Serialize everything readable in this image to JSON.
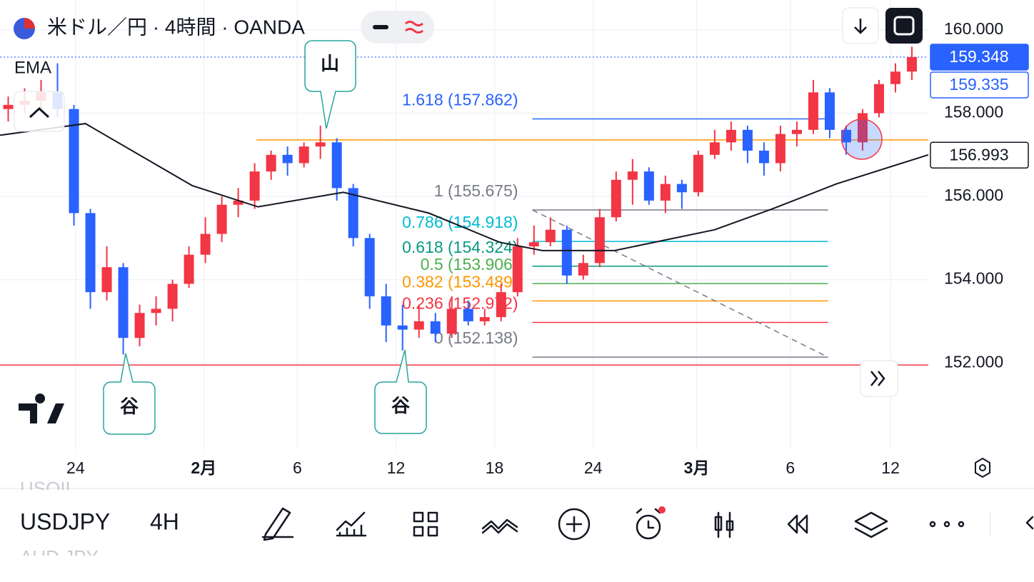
{
  "header": {
    "title": "米ドル／円 · 4時間 · OANDA",
    "indicator": "EMA"
  },
  "chart_data": {
    "type": "candlestick",
    "x": [
      0.5,
      1.5,
      2.5,
      3.5,
      4.5,
      5.5,
      6.5,
      7.5,
      8.5,
      9.5,
      10.5,
      11.5,
      12.5,
      13.5,
      14.5,
      15.5,
      16.5,
      17.5,
      18.5,
      19.5,
      20.5,
      21.5,
      22.5,
      23.5,
      24.5,
      25.5,
      26.5,
      27.5,
      28.5,
      29.5,
      30.5,
      31.5,
      32.5,
      33.5,
      34.5,
      35.5,
      36.5,
      37.5,
      38.5,
      39.5,
      40.5,
      41.5,
      42.5,
      43.5,
      44.5,
      45.5,
      46.5,
      47.5,
      48.5,
      49.5,
      50.5,
      51.5,
      52.5,
      53.5,
      54.5,
      55.5
    ],
    "open": [
      158.1,
      158.2,
      158.3,
      158.5,
      158.1,
      155.6,
      153.7,
      154.3,
      152.6,
      153.2,
      153.3,
      153.9,
      154.6,
      155.1,
      155.8,
      155.9,
      156.6,
      157.0,
      156.8,
      157.2,
      157.3,
      156.2,
      155.0,
      153.6,
      152.9,
      152.8,
      153.0,
      152.7,
      153.3,
      153.0,
      153.1,
      153.7,
      154.8,
      154.9,
      155.2,
      154.1,
      154.4,
      155.5,
      156.4,
      156.6,
      155.9,
      156.3,
      156.1,
      157.0,
      157.3,
      157.6,
      157.1,
      156.8,
      157.5,
      157.6,
      158.5,
      157.6,
      157.3,
      158.0,
      158.7,
      159.0
    ],
    "high": [
      158.4,
      158.6,
      158.8,
      159.2,
      158.2,
      155.7,
      154.8,
      154.4,
      153.4,
      153.6,
      154.0,
      154.8,
      155.5,
      156.0,
      156.2,
      156.8,
      157.1,
      157.2,
      157.3,
      157.7,
      157.4,
      156.3,
      155.1,
      153.9,
      153.4,
      153.4,
      153.2,
      153.6,
      153.5,
      153.3,
      153.9,
      155.0,
      155.3,
      155.5,
      155.3,
      154.6,
      155.7,
      156.6,
      156.9,
      156.7,
      156.5,
      156.4,
      157.1,
      157.6,
      157.8,
      157.7,
      157.3,
      157.7,
      157.8,
      158.8,
      158.6,
      157.7,
      158.1,
      158.8,
      159.2,
      159.6
    ],
    "low": [
      157.8,
      158.0,
      158.1,
      157.9,
      155.3,
      153.3,
      153.5,
      152.2,
      152.4,
      152.9,
      153.0,
      153.8,
      154.4,
      154.9,
      155.5,
      155.7,
      156.4,
      156.5,
      156.7,
      156.9,
      155.9,
      154.8,
      153.3,
      152.5,
      152.3,
      152.6,
      152.5,
      152.6,
      152.9,
      152.9,
      153.0,
      153.6,
      154.6,
      154.8,
      153.9,
      154.0,
      154.3,
      155.4,
      155.8,
      155.8,
      155.6,
      155.7,
      156.0,
      156.9,
      157.1,
      156.8,
      156.5,
      156.6,
      157.2,
      157.5,
      157.4,
      157.0,
      157.1,
      157.9,
      158.5,
      158.8
    ],
    "close": [
      158.2,
      158.3,
      158.5,
      158.1,
      155.6,
      153.7,
      154.3,
      152.6,
      153.2,
      153.3,
      153.9,
      154.6,
      155.1,
      155.8,
      155.9,
      156.6,
      157.0,
      156.8,
      157.2,
      157.3,
      156.2,
      155.0,
      153.6,
      152.9,
      152.8,
      153.0,
      152.7,
      153.3,
      153.0,
      153.1,
      153.7,
      154.8,
      154.9,
      155.2,
      154.1,
      154.4,
      155.5,
      156.4,
      156.6,
      155.9,
      156.3,
      156.1,
      157.0,
      157.3,
      157.6,
      157.1,
      156.8,
      157.5,
      157.6,
      158.5,
      157.6,
      157.3,
      158.0,
      158.7,
      159.0,
      159.35
    ],
    "up_color": "#f23645",
    "down_color": "#2962ff",
    "xlim": [
      0,
      56.5
    ],
    "xticks": [
      {
        "value": 4.6,
        "label": "24"
      },
      {
        "value": 12.4,
        "label": "2月"
      },
      {
        "value": 18.1,
        "label": "6"
      },
      {
        "value": 24.1,
        "label": "12"
      },
      {
        "value": 30.1,
        "label": "18"
      },
      {
        "value": 36.1,
        "label": "24"
      },
      {
        "value": 42.4,
        "label": "3月"
      },
      {
        "value": 48.1,
        "label": "6"
      },
      {
        "value": 54.2,
        "label": "12"
      }
    ],
    "ylim": [
      149.91,
      160.72
    ],
    "yticks": [
      {
        "value": 152,
        "label": "152.000"
      },
      {
        "value": 154,
        "label": "154.000"
      },
      {
        "value": 156,
        "label": "156.000"
      },
      {
        "value": 158,
        "label": "158.000"
      },
      {
        "value": 160,
        "label": "160.000"
      }
    ],
    "grid": true,
    "ema": {
      "color": "#131722",
      "x": [
        0,
        5.2,
        11.7,
        15.7,
        20.9,
        26.1,
        30.4,
        33,
        37.4,
        43.5,
        47,
        50.9,
        56.5
      ],
      "values": [
        157.47,
        157.75,
        156.26,
        155.75,
        156.1,
        155.6,
        154.9,
        154.7,
        154.7,
        155.2,
        155.7,
        156.3,
        157.0
      ]
    },
    "hlines": [
      {
        "value": 157.36,
        "color": "#ff9800",
        "x_start": 15.6
      },
      {
        "value": 151.95,
        "color": "#f23645",
        "x_start": 0
      }
    ],
    "fib": {
      "x_start": 32.4,
      "x_end": 50.4,
      "levels": [
        {
          "price": 157.862,
          "color": "#2962ff",
          "label": "1.618 (157.862)"
        },
        {
          "price": 155.675,
          "color": "#787b86",
          "label": "1 (155.675)"
        },
        {
          "price": 154.918,
          "color": "#00bcd4",
          "label": "0.786 (154.918)"
        },
        {
          "price": 154.324,
          "color": "#089981",
          "label": "0.618 (154.324)"
        },
        {
          "price": 153.906,
          "color": "#4caf50",
          "label": "0.5 (153.906)"
        },
        {
          "price": 153.489,
          "color": "#ff9800",
          "label": "0.382 (153.489)"
        },
        {
          "price": 152.972,
          "color": "#f23645",
          "label": "0.236 (152.972)"
        },
        {
          "price": 152.138,
          "color": "#787b86",
          "label": "0 (152.138)"
        }
      ]
    },
    "price_labels": [
      {
        "value": 159.348,
        "style": "filled",
        "color": "#2962ff"
      },
      {
        "value": 159.335,
        "style": "outline",
        "color": "#2962ff"
      },
      {
        "value": 156.993,
        "style": "outline",
        "color": "#131722"
      }
    ],
    "annotations": [
      {
        "text": "山"
      },
      {
        "text": "谷"
      },
      {
        "text": "谷"
      }
    ]
  },
  "toolbar": {
    "symbol": "USDJPY",
    "interval": "4H",
    "watchlist_prev": "USOIL",
    "watchlist_next": "AUD JPY"
  }
}
